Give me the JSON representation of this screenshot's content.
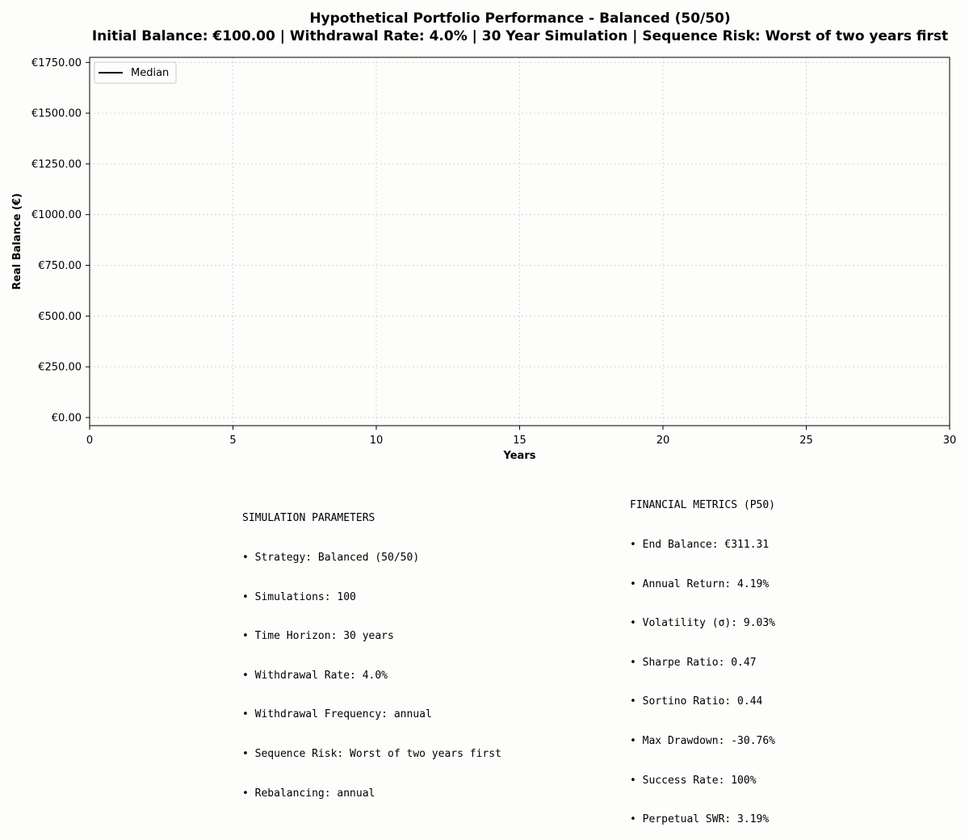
{
  "chart_data": {
    "type": "line",
    "title": "Hypothetical Portfolio Performance - Balanced (50/50)",
    "subtitle": "Initial Balance: €100.00 | Withdrawal Rate: 4.0% | 30 Year Simulation | Sequence Risk: Worst of two years first",
    "xlabel": "Years",
    "ylabel": "Real Balance (€)",
    "xlim": [
      0,
      30
    ],
    "ylim": [
      -40,
      1775
    ],
    "xticks": [
      0,
      5,
      10,
      15,
      20,
      25,
      30
    ],
    "xtick_labels": [
      "0",
      "5",
      "10",
      "15",
      "20",
      "25",
      "30"
    ],
    "yticks": [
      0,
      250,
      500,
      750,
      1000,
      1250,
      1500,
      1750
    ],
    "ytick_labels": [
      "€0.00",
      "€250.00",
      "€500.00",
      "€750.00",
      "€1000.00",
      "€1250.00",
      "€1500.00",
      "€1750.00"
    ],
    "grid": true,
    "legend_position": "top-left",
    "series": [
      {
        "name": "Median",
        "color": "#000000",
        "x": [],
        "values": []
      }
    ]
  },
  "parameters": {
    "title": "SIMULATION PARAMETERS",
    "lines": [
      "• Strategy: Balanced (50/50)",
      "• Simulations: 100",
      "• Time Horizon: 30 years",
      "• Withdrawal Rate: 4.0%",
      "• Withdrawal Frequency: annual",
      "• Sequence Risk: Worst of two years first",
      "• Rebalancing: annual"
    ]
  },
  "metrics": {
    "title": "FINANCIAL METRICS (P50)",
    "lines": [
      "• End Balance: €311.31",
      "• Annual Return: 4.19%",
      "• Volatility (σ): 9.03%",
      "• Sharpe Ratio: 0.47",
      "• Sortino Ratio: 0.44",
      "• Max Drawdown: -30.76%",
      "• Success Rate: 100%",
      "• Perpetual SWR: 3.19%"
    ]
  },
  "colors": {
    "background": "#fdfdfc",
    "grid": "#cccccc",
    "axis": "#000000"
  }
}
